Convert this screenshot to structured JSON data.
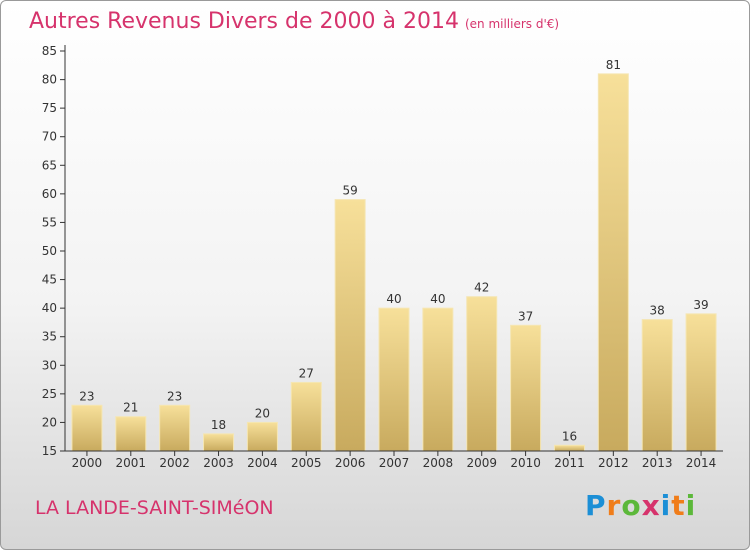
{
  "header": {
    "title": "Autres Revenus Divers de 2000 à 2014",
    "subtitle": "(en milliers d'€)"
  },
  "footer": {
    "commune": "LA LANDE-SAINT-SIMéON",
    "logo": "Proxiti",
    "logo_colors": [
      "#1c8fd6",
      "#f07d1a",
      "#5cb83a",
      "#d6336c",
      "#1c8fd6",
      "#f07d1a",
      "#5cb83a"
    ]
  },
  "chart_data": {
    "type": "bar",
    "title": "Autres Revenus Divers de 2000 à 2014",
    "subtitle": "(en milliers d'€)",
    "categories": [
      "2000",
      "2001",
      "2002",
      "2003",
      "2004",
      "2005",
      "2006",
      "2007",
      "2008",
      "2009",
      "2010",
      "2011",
      "2012",
      "2013",
      "2014"
    ],
    "values": [
      23,
      21,
      23,
      18,
      20,
      27,
      59,
      40,
      40,
      42,
      37,
      16,
      81,
      38,
      39
    ],
    "ylim": [
      15,
      85
    ],
    "yticks": [
      15,
      20,
      25,
      30,
      35,
      40,
      45,
      50,
      55,
      60,
      65,
      70,
      75,
      80,
      85
    ],
    "grid": false,
    "bar_color_top": "#f7e09a",
    "bar_color_bottom": "#c8aa5e",
    "axis_color": "#333333"
  }
}
